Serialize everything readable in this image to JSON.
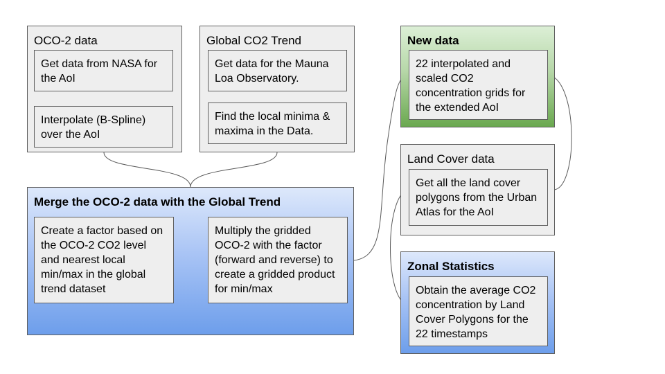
{
  "oco2": {
    "title": "OCO-2 data",
    "step1": "Get data from NASA for the AoI",
    "step2": "Interpolate (B-Spline) over the AoI"
  },
  "trend": {
    "title": "Global CO2 Trend",
    "step1": "Get data for the Mauna Loa Observatory.",
    "step2": "Find the local minima & maxima in the Data."
  },
  "merge": {
    "title": "Merge the OCO-2 data with the Global Trend",
    "step1": "Create a factor based on the OCO-2 CO2 level and nearest local min/max in the global trend dataset",
    "step2": "Multiply the gridded OCO-2 with the factor (forward and reverse) to create a gridded product for min/max"
  },
  "new_data": {
    "title": "New data",
    "step1": "22 interpolated and scaled CO2 concentration grids for the extended AoI"
  },
  "land_cover": {
    "title": "Land Cover data",
    "step1": "Get all the land cover polygons from the Urban Atlas for the AoI"
  },
  "zonal": {
    "title": "Zonal Statistics",
    "step1": "Obtain the average CO2 concentration by Land Cover Polygons for the 22 timestamps"
  },
  "colors": {
    "box_fill": "#eeeeee",
    "border": "#5f5f5f",
    "green_accent": "#6aa84f",
    "blue_accent": "#6d9eeb",
    "connector": "#595959"
  }
}
